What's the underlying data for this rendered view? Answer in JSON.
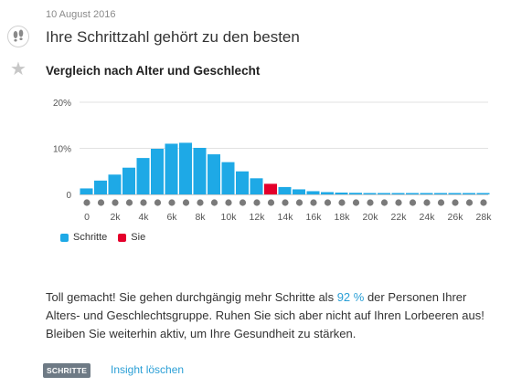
{
  "header": {
    "date": "10 August 2016",
    "headline": "Ihre Schrittzahl gehört zu den besten",
    "icon": "footsteps-icon"
  },
  "favorite": {
    "icon": "star-icon"
  },
  "chart": {
    "title": "Vergleich nach Alter und Geschlecht"
  },
  "chart_data": {
    "type": "bar",
    "xlabel": "",
    "ylabel": "",
    "ytick_labels": [
      "0",
      "10%",
      "20%"
    ],
    "yticks": [
      0,
      10,
      20
    ],
    "ylim": [
      0,
      20
    ],
    "xtick_labels": [
      "0",
      "2k",
      "4k",
      "6k",
      "8k",
      "10k",
      "12k",
      "14k",
      "16k",
      "18k",
      "20k",
      "22k",
      "24k",
      "26k",
      "28k"
    ],
    "xticks": [
      0,
      2000,
      4000,
      6000,
      8000,
      10000,
      12000,
      14000,
      16000,
      18000,
      20000,
      22000,
      24000,
      26000,
      28000
    ],
    "bin_width": 1000,
    "grid": true,
    "legend": "bottom-left",
    "series": [
      {
        "name": "Schritte",
        "color": "#1ea9e6",
        "values": [
          1.3,
          3.0,
          4.3,
          5.8,
          7.9,
          9.9,
          11.0,
          11.2,
          10.1,
          8.7,
          7.0,
          5.0,
          3.5,
          2.3,
          1.6,
          1.1,
          0.7,
          0.5,
          0.4,
          0.35,
          0.3,
          0.3,
          0.3,
          0.3,
          0.3,
          0.3,
          0.3,
          0.3,
          0.3
        ],
        "highlight_index": 13,
        "highlight_color": "#e4002b"
      }
    ],
    "legend_entries": [
      {
        "label": "Schritte",
        "color": "#1ea9e6"
      },
      {
        "label": "Sie",
        "color": "#e4002b"
      }
    ]
  },
  "message": {
    "before": "Toll gemacht! Sie gehen durchgängig mehr Schritte als ",
    "percent": "92 %",
    "after": " der Personen Ihrer Alters- und Geschlechtsgruppe. Ruhen Sie sich aber nicht auf Ihren Lorbeeren aus! Bleiben Sie weiterhin aktiv, um Ihre Gesundheit zu stärken."
  },
  "footer": {
    "tag": "SCHRITTE",
    "delete_label": "Insight löschen"
  }
}
